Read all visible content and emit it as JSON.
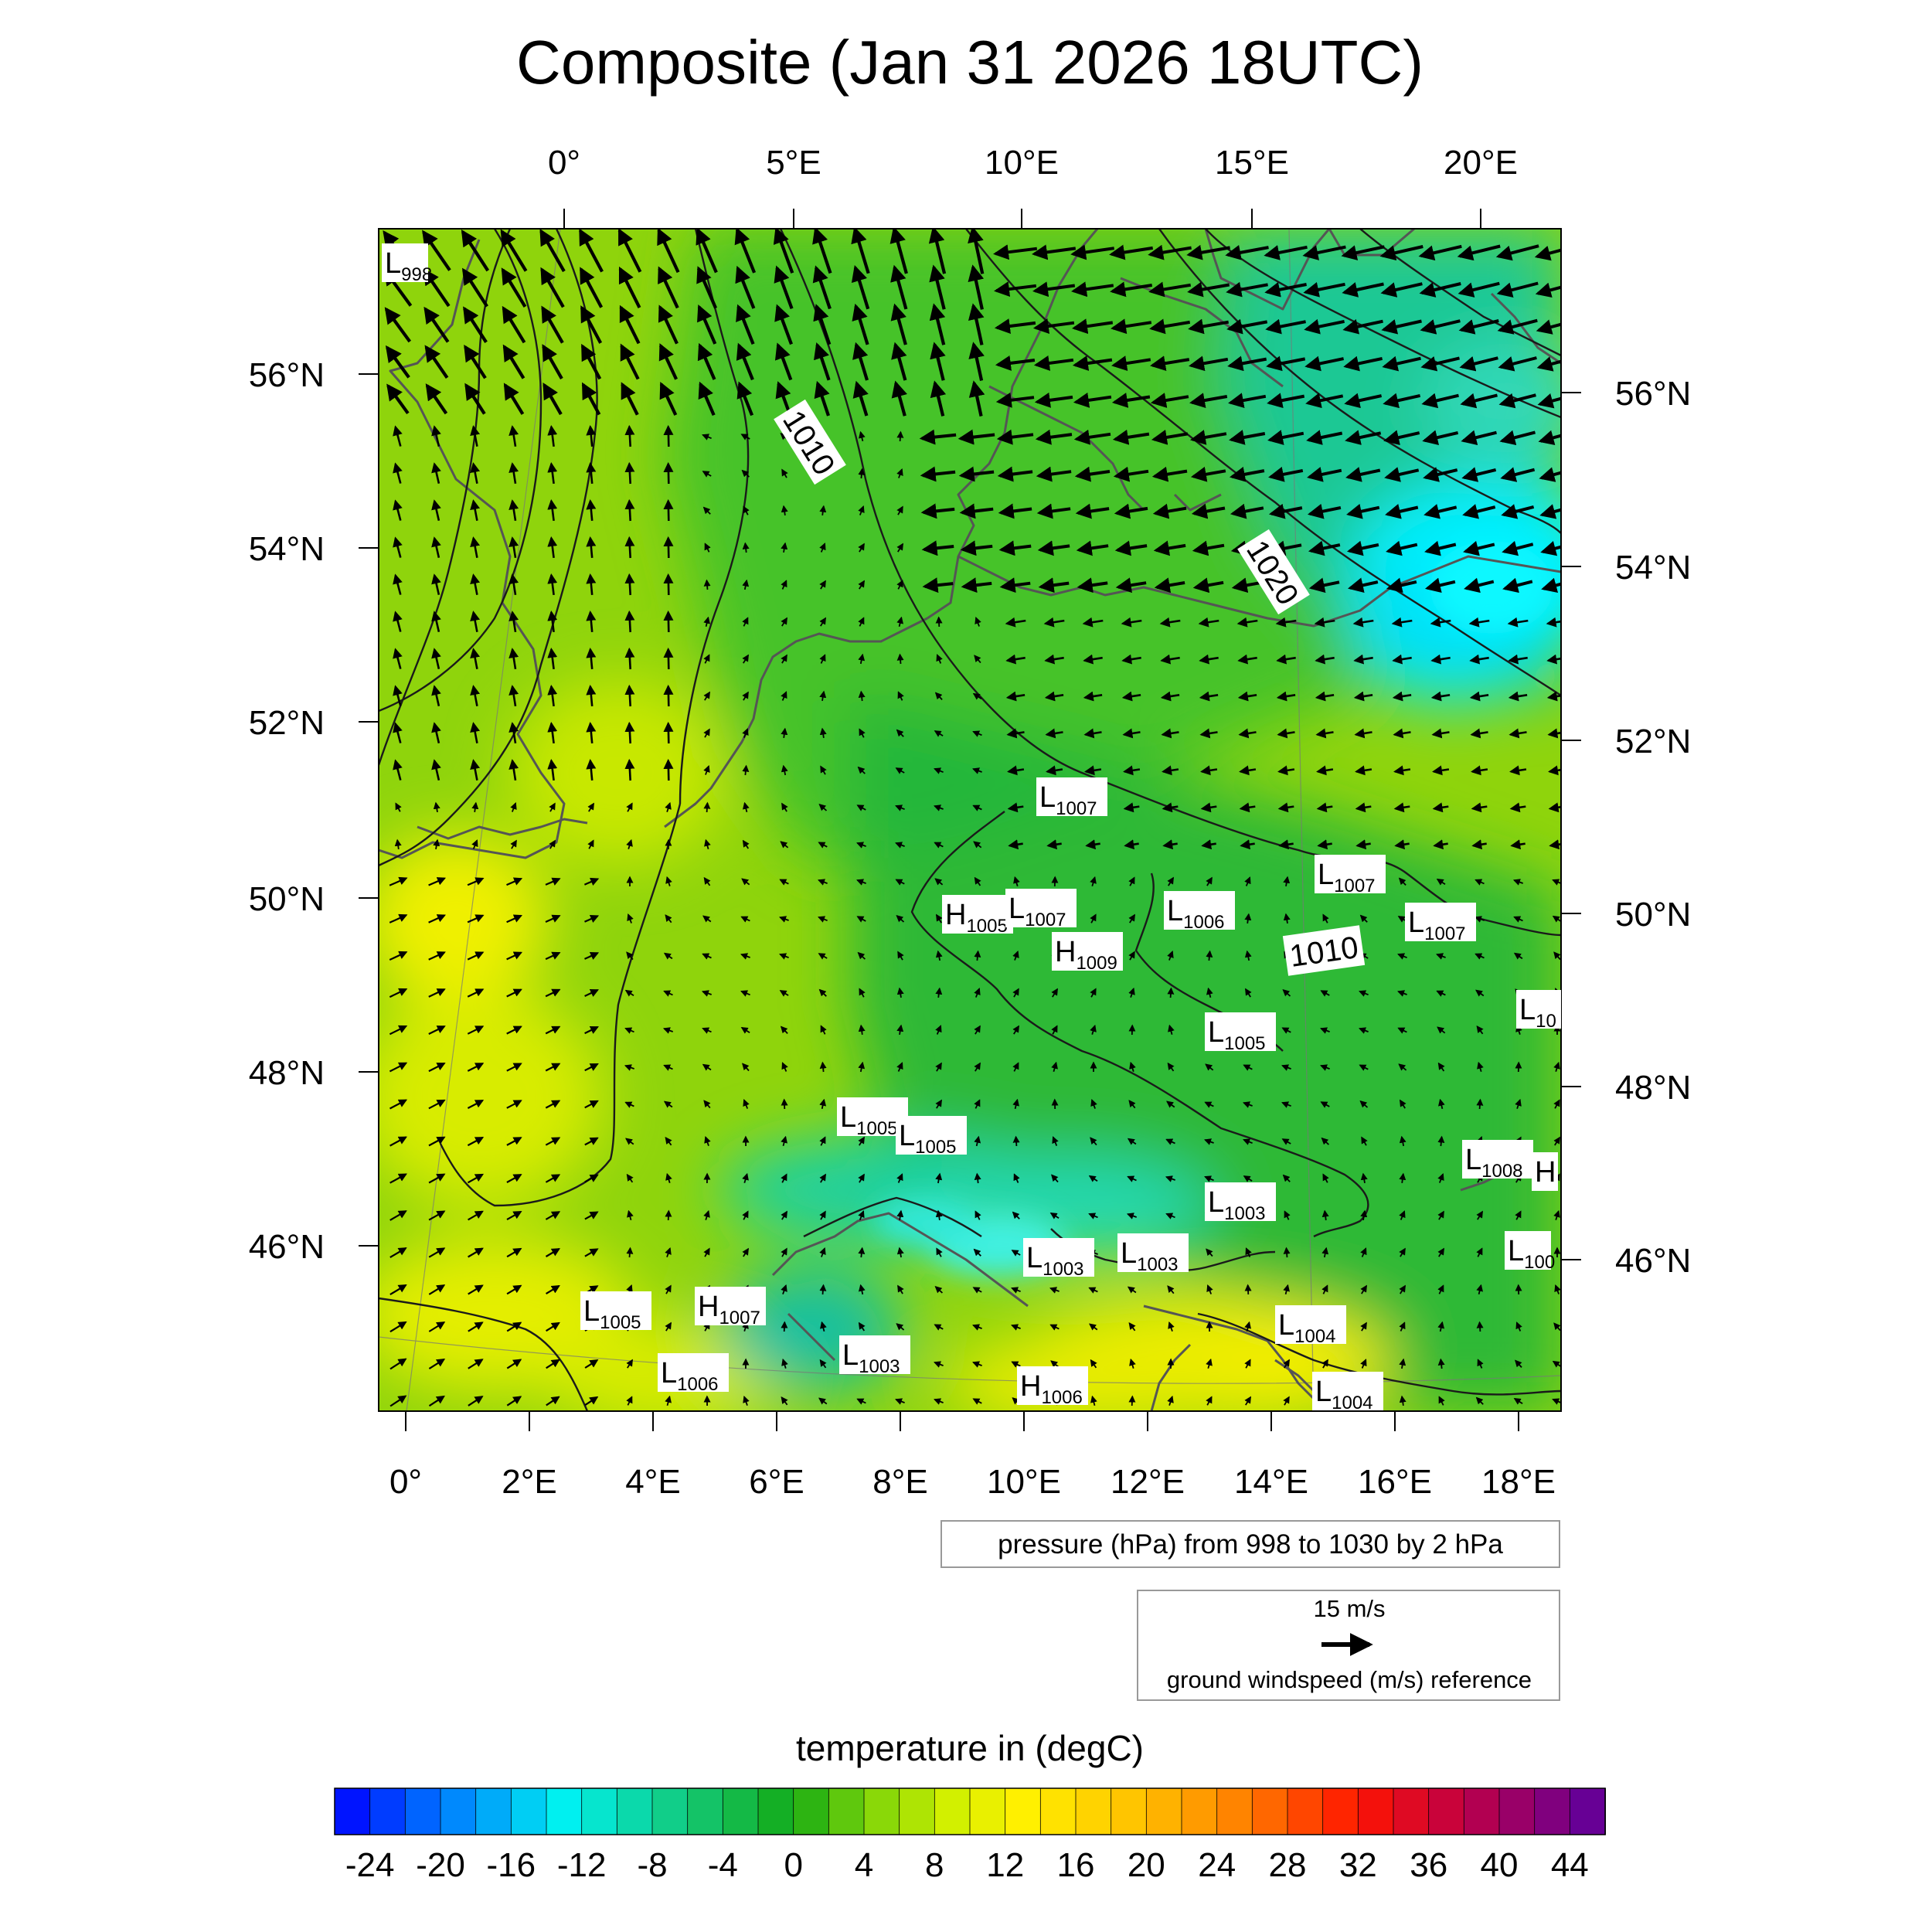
{
  "title": "Composite (Jan 31 2026 18UTC)",
  "top_lon_labels": [
    "0°",
    "5°E",
    "10°E",
    "15°E",
    "20°E"
  ],
  "bottom_lon_labels": [
    "0°",
    "2°E",
    "4°E",
    "6°E",
    "8°E",
    "10°E",
    "12°E",
    "14°E",
    "16°E",
    "18°E"
  ],
  "left_lat_labels": [
    "56°N",
    "54°N",
    "52°N",
    "50°N",
    "48°N",
    "46°N"
  ],
  "right_lat_labels": [
    "56°N",
    "54°N",
    "52°N",
    "50°N",
    "48°N",
    "46°N"
  ],
  "isobar_labels": [
    "1010",
    "1020",
    "1010"
  ],
  "pressure_centers": [
    {
      "type": "L",
      "value": "998"
    },
    {
      "type": "L",
      "value": "1007"
    },
    {
      "type": "L",
      "value": "1007"
    },
    {
      "type": "H",
      "value": "1005"
    },
    {
      "type": "L",
      "value": "1007"
    },
    {
      "type": "L",
      "value": "1006"
    },
    {
      "type": "H",
      "value": "1009"
    },
    {
      "type": "L",
      "value": "1007"
    },
    {
      "type": "L",
      "value": "10"
    },
    {
      "type": "L",
      "value": "1005"
    },
    {
      "type": "L",
      "value": "1005"
    },
    {
      "type": "L",
      "value": "1005"
    },
    {
      "type": "L",
      "value": "1008"
    },
    {
      "type": "H",
      "value": ""
    },
    {
      "type": "L",
      "value": "1003"
    },
    {
      "type": "L",
      "value": "1003"
    },
    {
      "type": "L",
      "value": "1003"
    },
    {
      "type": "L",
      "value": "100"
    },
    {
      "type": "L",
      "value": "1005"
    },
    {
      "type": "H",
      "value": "1007"
    },
    {
      "type": "L",
      "value": "1003"
    },
    {
      "type": "L",
      "value": "1004"
    },
    {
      "type": "L",
      "value": "1006"
    },
    {
      "type": "H",
      "value": "1006"
    },
    {
      "type": "L",
      "value": "1004"
    }
  ],
  "pressure_note": "pressure (hPa) from 998 to 1030 by 2 hPa",
  "wind_reference": {
    "speed_label": "15 m/s",
    "caption": "ground windspeed (m/s) reference"
  },
  "colorbar": {
    "title": "temperature in (degC)",
    "labels": [
      "-24",
      "-20",
      "-16",
      "-12",
      "-8",
      "-4",
      "0",
      "4",
      "8",
      "12",
      "16",
      "20",
      "24",
      "28",
      "32",
      "36",
      "40",
      "44"
    ],
    "range": [
      -26,
      46
    ],
    "step": 2
  },
  "colors": {
    "cold": "#00e8e0",
    "cool": "#12b84a",
    "mild": "#8fd40c",
    "warm": "#ffee00"
  }
}
